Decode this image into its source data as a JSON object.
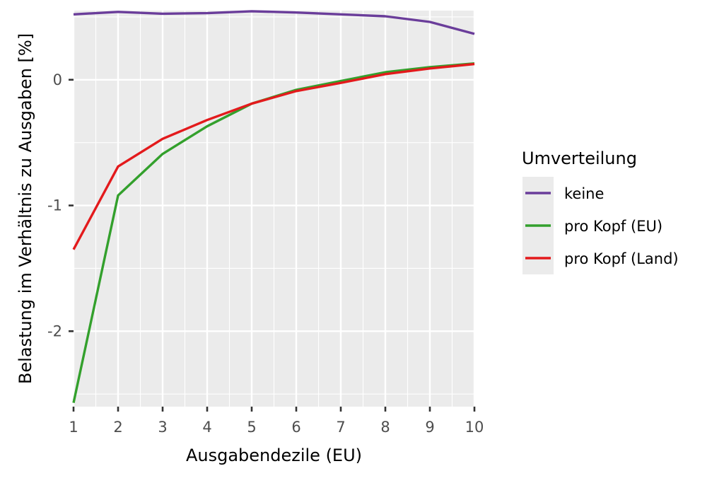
{
  "chart_data": {
    "type": "line",
    "xlabel": "Ausgabendezile (EU)",
    "ylabel": "Belastung im Verhältnis zu Ausgaben [%]",
    "x": [
      1,
      2,
      3,
      4,
      5,
      6,
      7,
      8,
      9,
      10
    ],
    "x_ticks": [
      "1",
      "2",
      "3",
      "4",
      "5",
      "6",
      "7",
      "8",
      "9",
      "10"
    ],
    "y_ticks": [
      {
        "value": 0,
        "label": "0"
      },
      {
        "value": -1,
        "label": "-1"
      },
      {
        "value": -2,
        "label": "-2"
      }
    ],
    "xlim": [
      1,
      10
    ],
    "ylim": [
      -2.6,
      0.55
    ],
    "grid": true,
    "legend": {
      "title": "Umverteilung",
      "placement": "right"
    },
    "series": [
      {
        "name": "keine",
        "color": "#6a3d9a",
        "values": [
          0.52,
          0.54,
          0.525,
          0.53,
          0.545,
          0.535,
          0.52,
          0.505,
          0.46,
          0.365
        ]
      },
      {
        "name": "pro Kopf (EU)",
        "color": "#33a02c",
        "values": [
          -2.57,
          -0.92,
          -0.59,
          -0.37,
          -0.19,
          -0.08,
          -0.01,
          0.06,
          0.1,
          0.13
        ]
      },
      {
        "name": "pro Kopf (Land)",
        "color": "#e31a1c",
        "values": [
          -1.35,
          -0.69,
          -0.47,
          -0.32,
          -0.19,
          -0.09,
          -0.025,
          0.045,
          0.09,
          0.125
        ]
      }
    ],
    "colors": {
      "panel_background": "#ebebeb",
      "grid": "#ffffff",
      "tick_text": "#4d4d4d",
      "tick_mark": "#333333"
    }
  }
}
